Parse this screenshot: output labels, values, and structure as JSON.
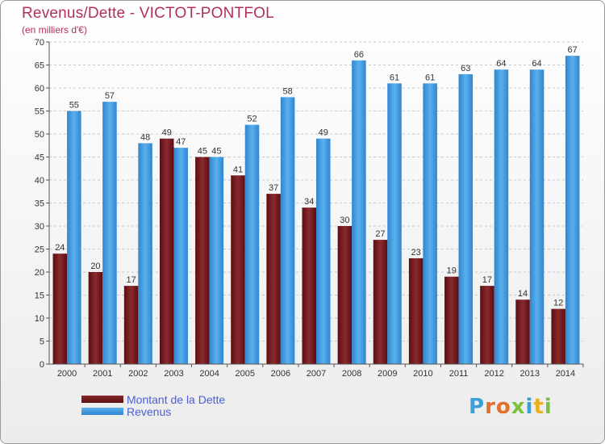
{
  "header": {
    "title": "Revenus/Dette - VICTOT-PONTFOL",
    "subtitle": "(en milliers d'€)"
  },
  "colors": {
    "dette": "#6e1a1c",
    "revenus": "#3f9ae0",
    "title": "#b0305a",
    "legend_text": "#4a5fd8"
  },
  "chart_data": {
    "type": "bar",
    "title": "Revenus/Dette - VICTOT-PONTFOL",
    "subtitle": "(en milliers d'€)",
    "categories": [
      "2000",
      "2001",
      "2002",
      "2003",
      "2004",
      "2005",
      "2006",
      "2007",
      "2008",
      "2009",
      "2010",
      "2011",
      "2012",
      "2013",
      "2014"
    ],
    "series": [
      {
        "name": "Montant de la Dette",
        "values": [
          24,
          20,
          17,
          49,
          45,
          41,
          37,
          34,
          30,
          27,
          23,
          19,
          17,
          14,
          12
        ]
      },
      {
        "name": "Revenus",
        "values": [
          55,
          57,
          48,
          47,
          45,
          52,
          58,
          49,
          66,
          61,
          61,
          63,
          64,
          64,
          67
        ]
      }
    ],
    "ylim": [
      0,
      70
    ],
    "yticks": [
      0,
      5,
      10,
      15,
      20,
      25,
      30,
      35,
      40,
      45,
      50,
      55,
      60,
      65,
      70
    ],
    "grid": true,
    "legend": "bottom-left"
  },
  "legend": {
    "items": [
      {
        "label": "Montant de la Dette",
        "color": "#6e1a1c"
      },
      {
        "label": "Revenus",
        "color": "#3f9ae0"
      }
    ]
  },
  "logo": {
    "text": "Proxiti",
    "letters": [
      {
        "ch": "P",
        "color": "#3aa0d8"
      },
      {
        "ch": "r",
        "color": "#e0702a"
      },
      {
        "ch": "o",
        "color": "#e0702a"
      },
      {
        "ch": "x",
        "color": "#7cc13e"
      },
      {
        "ch": "i",
        "color": "#3aa0d8"
      },
      {
        "ch": "t",
        "color": "#e8b020"
      },
      {
        "ch": "i",
        "color": "#7cc13e"
      }
    ]
  }
}
